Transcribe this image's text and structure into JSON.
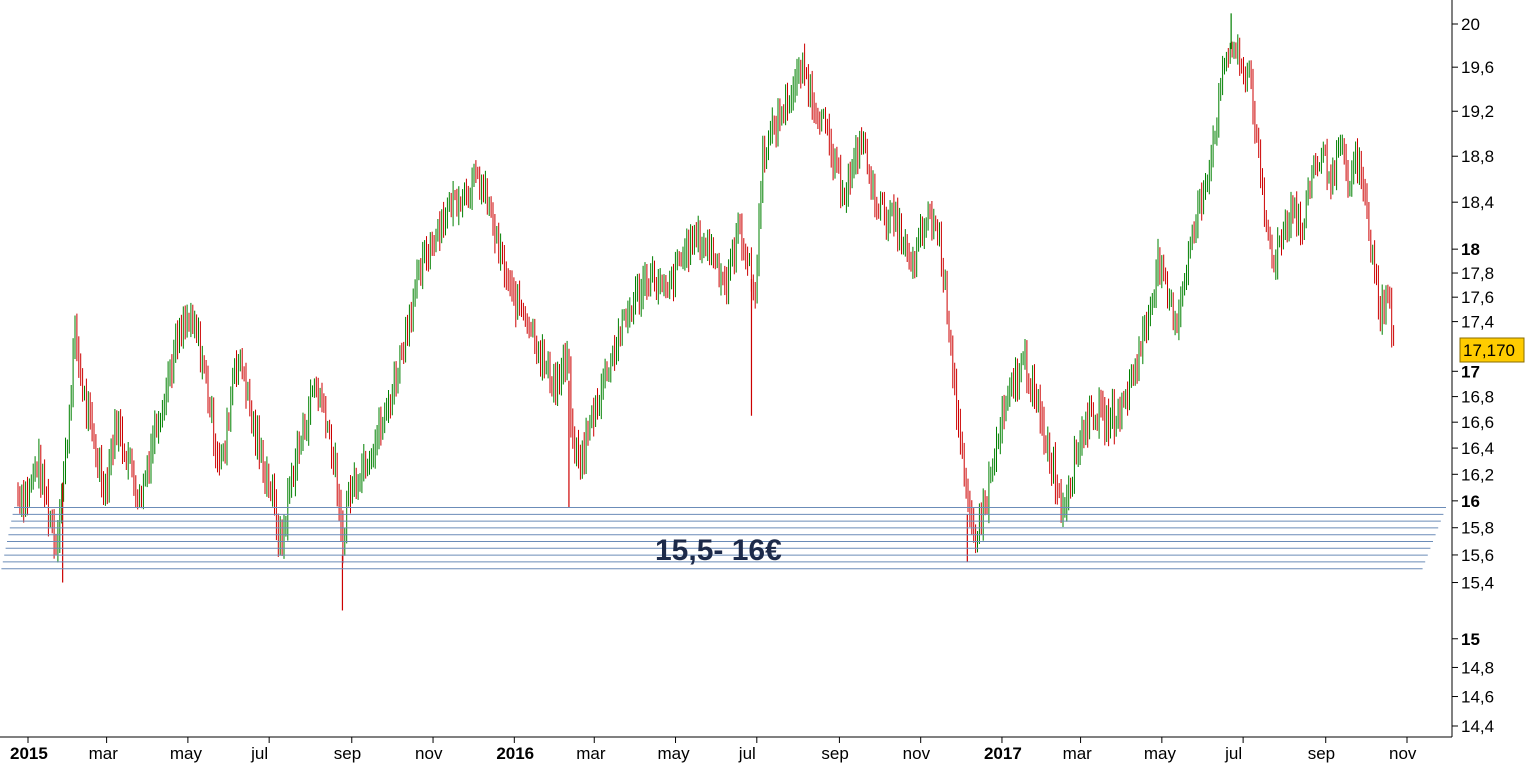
{
  "chart_data": {
    "type": "bar",
    "style": "ohlc-price-bars",
    "title": "",
    "xlabel": "",
    "ylabel": "",
    "y_scale": "log",
    "ylim": [
      14.3,
      20.15
    ],
    "x_range": [
      "2015-01-01",
      "2017-11-30"
    ],
    "y_ticks": [
      {
        "value": 14.4,
        "label": "14,4",
        "major": false
      },
      {
        "value": 14.6,
        "label": "14,6",
        "major": false
      },
      {
        "value": 14.8,
        "label": "14,8",
        "major": false
      },
      {
        "value": 15.0,
        "label": "15",
        "major": true
      },
      {
        "value": 15.4,
        "label": "15,4",
        "major": false
      },
      {
        "value": 15.6,
        "label": "15,6",
        "major": false
      },
      {
        "value": 15.8,
        "label": "15,8",
        "major": false
      },
      {
        "value": 16.0,
        "label": "16",
        "major": true
      },
      {
        "value": 16.2,
        "label": "16,2",
        "major": false
      },
      {
        "value": 16.4,
        "label": "16,4",
        "major": false
      },
      {
        "value": 16.6,
        "label": "16,6",
        "major": false
      },
      {
        "value": 16.8,
        "label": "16,8",
        "major": false
      },
      {
        "value": 17.0,
        "label": "17",
        "major": true
      },
      {
        "value": 17.4,
        "label": "17,4",
        "major": false
      },
      {
        "value": 17.6,
        "label": "17,6",
        "major": false
      },
      {
        "value": 17.8,
        "label": "17,8",
        "major": false
      },
      {
        "value": 18.0,
        "label": "18",
        "major": true
      },
      {
        "value": 18.4,
        "label": "18,4",
        "major": false
      },
      {
        "value": 18.8,
        "label": "18,8",
        "major": false
      },
      {
        "value": 19.2,
        "label": "19,2",
        "major": false
      },
      {
        "value": 19.6,
        "label": "19,6",
        "major": false
      },
      {
        "value": 20.0,
        "label": "20",
        "major": false
      }
    ],
    "x_ticks": [
      {
        "date": "2015-01-01",
        "label": "2015",
        "major": true
      },
      {
        "date": "2015-03-01",
        "label": "mar",
        "major": false
      },
      {
        "date": "2015-05-01",
        "label": "may",
        "major": false
      },
      {
        "date": "2015-07-01",
        "label": "jul",
        "major": false
      },
      {
        "date": "2015-09-01",
        "label": "sep",
        "major": false
      },
      {
        "date": "2015-11-01",
        "label": "nov",
        "major": false
      },
      {
        "date": "2016-01-01",
        "label": "2016",
        "major": true
      },
      {
        "date": "2016-03-01",
        "label": "mar",
        "major": false
      },
      {
        "date": "2016-05-01",
        "label": "may",
        "major": false
      },
      {
        "date": "2016-07-01",
        "label": "jul",
        "major": false
      },
      {
        "date": "2016-09-01",
        "label": "sep",
        "major": false
      },
      {
        "date": "2016-11-01",
        "label": "nov",
        "major": false
      },
      {
        "date": "2017-01-01",
        "label": "2017",
        "major": true
      },
      {
        "date": "2017-03-01",
        "label": "mar",
        "major": false
      },
      {
        "date": "2017-05-01",
        "label": "may",
        "major": false
      },
      {
        "date": "2017-07-01",
        "label": "jul",
        "major": false
      },
      {
        "date": "2017-09-01",
        "label": "sep",
        "major": false
      },
      {
        "date": "2017-11-01",
        "label": "nov",
        "major": false
      }
    ],
    "price_path": [
      [
        "2015-01-01",
        16.05
      ],
      [
        "2015-01-08",
        16.3
      ],
      [
        "2015-01-16",
        15.95
      ],
      [
        "2015-01-22",
        15.7
      ],
      [
        "2015-01-30",
        16.4
      ],
      [
        "2015-02-05",
        17.3
      ],
      [
        "2015-02-12",
        16.8
      ],
      [
        "2015-02-20",
        16.4
      ],
      [
        "2015-02-28",
        16.1
      ],
      [
        "2015-03-08",
        16.6
      ],
      [
        "2015-03-18",
        16.3
      ],
      [
        "2015-03-26",
        16.0
      ],
      [
        "2015-04-05",
        16.5
      ],
      [
        "2015-04-15",
        16.9
      ],
      [
        "2015-04-22",
        17.2
      ],
      [
        "2015-04-30",
        17.4
      ],
      [
        "2015-05-08",
        17.3
      ],
      [
        "2015-05-15",
        16.9
      ],
      [
        "2015-05-22",
        16.4
      ],
      [
        "2015-05-28",
        16.3
      ],
      [
        "2015-06-05",
        17.1
      ],
      [
        "2015-06-12",
        17.0
      ],
      [
        "2015-06-18",
        16.6
      ],
      [
        "2015-06-26",
        16.3
      ],
      [
        "2015-07-02",
        16.1
      ],
      [
        "2015-07-10",
        15.65
      ],
      [
        "2015-07-18",
        16.2
      ],
      [
        "2015-07-26",
        16.5
      ],
      [
        "2015-08-04",
        16.9
      ],
      [
        "2015-08-12",
        16.7
      ],
      [
        "2015-08-20",
        16.2
      ],
      [
        "2015-08-25",
        15.6
      ],
      [
        "2015-08-28",
        16.0
      ],
      [
        "2015-09-05",
        16.2
      ],
      [
        "2015-09-15",
        16.4
      ],
      [
        "2015-09-25",
        16.6
      ],
      [
        "2015-10-05",
        17.0
      ],
      [
        "2015-10-15",
        17.5
      ],
      [
        "2015-10-25",
        17.9
      ],
      [
        "2015-11-05",
        18.2
      ],
      [
        "2015-11-15",
        18.4
      ],
      [
        "2015-11-25",
        18.5
      ],
      [
        "2015-12-05",
        18.6
      ],
      [
        "2015-12-12",
        18.4
      ],
      [
        "2015-12-20",
        18.0
      ],
      [
        "2015-12-30",
        17.6
      ],
      [
        "2016-01-08",
        17.5
      ],
      [
        "2016-01-16",
        17.3
      ],
      [
        "2016-01-25",
        17.0
      ],
      [
        "2016-02-02",
        16.9
      ],
      [
        "2016-02-10",
        17.1
      ],
      [
        "2016-02-14",
        16.4
      ],
      [
        "2016-02-20",
        16.3
      ],
      [
        "2016-03-01",
        16.7
      ],
      [
        "2016-03-10",
        17.0
      ],
      [
        "2016-03-20",
        17.3
      ],
      [
        "2016-04-01",
        17.6
      ],
      [
        "2016-04-12",
        17.8
      ],
      [
        "2016-04-24",
        17.6
      ],
      [
        "2016-05-04",
        17.9
      ],
      [
        "2016-05-15",
        18.1
      ],
      [
        "2016-05-28",
        18.0
      ],
      [
        "2016-06-08",
        17.7
      ],
      [
        "2016-06-18",
        18.2
      ],
      [
        "2016-06-24",
        17.9
      ],
      [
        "2016-06-30",
        17.6
      ],
      [
        "2016-07-05",
        18.8
      ],
      [
        "2016-07-12",
        19.0
      ],
      [
        "2016-07-20",
        19.2
      ],
      [
        "2016-07-28",
        19.4
      ],
      [
        "2016-08-05",
        19.6
      ],
      [
        "2016-08-12",
        19.3
      ],
      [
        "2016-08-20",
        19.1
      ],
      [
        "2016-08-28",
        18.7
      ],
      [
        "2016-09-05",
        18.5
      ],
      [
        "2016-09-12",
        18.7
      ],
      [
        "2016-09-18",
        19.0
      ],
      [
        "2016-09-25",
        18.5
      ],
      [
        "2016-10-05",
        18.3
      ],
      [
        "2016-10-15",
        18.2
      ],
      [
        "2016-10-25",
        17.8
      ],
      [
        "2016-11-01",
        18.1
      ],
      [
        "2016-11-08",
        18.3
      ],
      [
        "2016-11-15",
        18.1
      ],
      [
        "2016-11-22",
        17.4
      ],
      [
        "2016-11-30",
        16.5
      ],
      [
        "2016-12-06",
        15.9
      ],
      [
        "2016-12-12",
        15.75
      ],
      [
        "2016-12-20",
        16.0
      ],
      [
        "2017-01-01",
        16.6
      ],
      [
        "2017-01-10",
        16.9
      ],
      [
        "2017-01-18",
        17.1
      ],
      [
        "2017-01-25",
        16.8
      ],
      [
        "2017-02-02",
        16.5
      ],
      [
        "2017-02-10",
        16.2
      ],
      [
        "2017-02-15",
        15.95
      ],
      [
        "2017-02-22",
        16.2
      ],
      [
        "2017-03-01",
        16.5
      ],
      [
        "2017-03-10",
        16.7
      ],
      [
        "2017-03-20",
        16.6
      ],
      [
        "2017-04-01",
        16.7
      ],
      [
        "2017-04-10",
        17.0
      ],
      [
        "2017-04-20",
        17.4
      ],
      [
        "2017-04-28",
        17.9
      ],
      [
        "2017-05-05",
        17.6
      ],
      [
        "2017-05-12",
        17.4
      ],
      [
        "2017-05-20",
        17.9
      ],
      [
        "2017-05-28",
        18.3
      ],
      [
        "2017-06-05",
        18.7
      ],
      [
        "2017-06-12",
        19.2
      ],
      [
        "2017-06-18",
        19.7
      ],
      [
        "2017-06-24",
        19.8
      ],
      [
        "2017-07-01",
        19.5
      ],
      [
        "2017-07-06",
        19.6
      ],
      [
        "2017-07-12",
        18.8
      ],
      [
        "2017-07-18",
        18.2
      ],
      [
        "2017-07-24",
        17.9
      ],
      [
        "2017-08-01",
        18.2
      ],
      [
        "2017-08-08",
        18.4
      ],
      [
        "2017-08-14",
        18.1
      ],
      [
        "2017-08-22",
        18.7
      ],
      [
        "2017-08-30",
        18.8
      ],
      [
        "2017-09-06",
        18.6
      ],
      [
        "2017-09-12",
        18.9
      ],
      [
        "2017-09-18",
        18.5
      ],
      [
        "2017-09-24",
        18.8
      ],
      [
        "2017-10-01",
        18.4
      ],
      [
        "2017-10-06",
        17.9
      ],
      [
        "2017-10-12",
        17.5
      ],
      [
        "2017-10-18",
        17.6
      ],
      [
        "2017-10-23",
        17.17
      ]
    ],
    "spikes": [
      {
        "date": "2015-01-27",
        "low": 15.4
      },
      {
        "date": "2015-08-25",
        "low": 15.2
      },
      {
        "date": "2016-02-11",
        "low": 15.95
      },
      {
        "date": "2016-06-27",
        "low": 16.65
      },
      {
        "date": "2016-12-06",
        "low": 15.55
      },
      {
        "date": "2017-06-22",
        "high": 20.1
      }
    ],
    "up_color": "#008000",
    "down_color": "#cc0000",
    "support_zone": {
      "label": "15,5- 16€",
      "low": 15.5,
      "high": 15.95,
      "line_count": 10,
      "line_color": "#6b8cb8"
    },
    "last_price": {
      "label": "17,170",
      "value": 17.17,
      "tag_color": "#ffcc00"
    }
  }
}
